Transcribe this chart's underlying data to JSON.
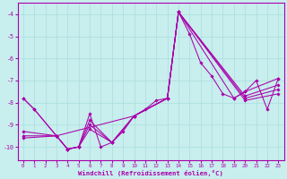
{
  "bg_color": "#c8eeee",
  "grid_color": "#aadddd",
  "line_color": "#aa00aa",
  "xlabel": "Windchill (Refroidissement éolien,°C)",
  "ylim": [
    -10.6,
    -3.5
  ],
  "xlim": [
    -0.5,
    23.5
  ],
  "yticks": [
    -10,
    -9,
    -8,
    -7,
    -6,
    -5,
    -4
  ],
  "xticks": [
    0,
    1,
    2,
    3,
    4,
    5,
    6,
    7,
    8,
    9,
    10,
    11,
    12,
    13,
    14,
    15,
    16,
    17,
    18,
    19,
    20,
    21,
    22,
    23
  ],
  "lines": [
    {
      "x": [
        0,
        1,
        3,
        4,
        5,
        6,
        7,
        8,
        9,
        10,
        11,
        12,
        13,
        14,
        15,
        16,
        17,
        18,
        19,
        20,
        21,
        22,
        23
      ],
      "y": [
        -7.8,
        -8.3,
        -9.5,
        -10.1,
        -10.0,
        -8.5,
        -10.0,
        -9.8,
        -9.3,
        -8.6,
        -8.3,
        -7.9,
        -7.8,
        -3.9,
        -4.9,
        -6.2,
        -6.8,
        -7.6,
        -7.8,
        -7.5,
        -7.0,
        -8.3,
        -6.9
      ]
    },
    {
      "x": [
        0,
        1,
        3,
        10,
        13,
        14,
        19,
        20,
        23
      ],
      "y": [
        -7.8,
        -8.3,
        -9.5,
        -8.6,
        -7.8,
        -3.9,
        -7.8,
        -7.5,
        -6.9
      ]
    },
    {
      "x": [
        0,
        3,
        4,
        5,
        6,
        8,
        10,
        13,
        14,
        20,
        23
      ],
      "y": [
        -9.3,
        -9.5,
        -10.1,
        -10.0,
        -8.8,
        -9.8,
        -8.6,
        -7.8,
        -3.9,
        -7.7,
        -7.2
      ]
    },
    {
      "x": [
        0,
        3,
        4,
        5,
        6,
        8,
        10,
        13,
        14,
        20,
        23
      ],
      "y": [
        -9.5,
        -9.5,
        -10.1,
        -10.0,
        -9.0,
        -9.8,
        -8.6,
        -7.8,
        -3.9,
        -7.8,
        -7.4
      ]
    },
    {
      "x": [
        0,
        3,
        4,
        5,
        6,
        8,
        10,
        13,
        14,
        20,
        23
      ],
      "y": [
        -9.6,
        -9.5,
        -10.1,
        -10.0,
        -9.2,
        -9.8,
        -8.6,
        -7.8,
        -3.9,
        -7.9,
        -7.6
      ]
    }
  ]
}
